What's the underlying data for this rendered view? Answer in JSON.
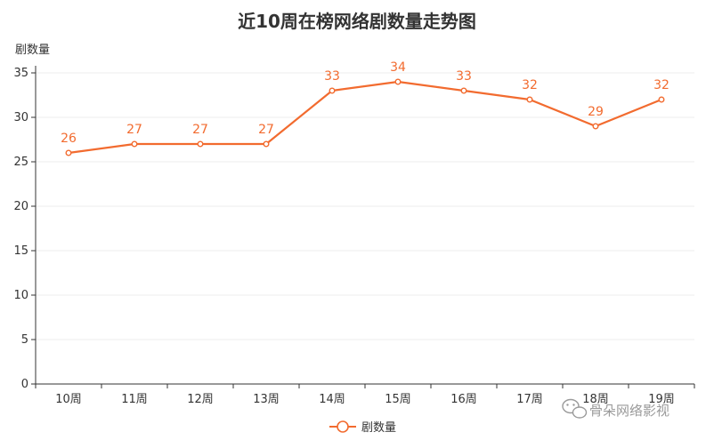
{
  "chart_data": {
    "type": "line",
    "title": "近10周在榜网络剧数量走势图",
    "ylabel": "剧数量",
    "xlabel": "",
    "categories": [
      "10周",
      "11周",
      "12周",
      "13周",
      "14周",
      "15周",
      "16周",
      "17周",
      "18周",
      "19周"
    ],
    "series": [
      {
        "name": "剧数量",
        "values": [
          26,
          27,
          27,
          27,
          33,
          34,
          33,
          32,
          29,
          32
        ]
      }
    ],
    "ylim": [
      0,
      35
    ],
    "yticks": [
      0,
      5,
      10,
      15,
      20,
      25,
      30,
      35
    ],
    "grid": true,
    "legend_position": "bottom-center",
    "colors": {
      "series": "#f26b2f",
      "axis": "#333333",
      "grid": "#eeeeee"
    }
  },
  "watermark": {
    "icon": "wechat-icon",
    "text": "骨朵网络影视"
  }
}
